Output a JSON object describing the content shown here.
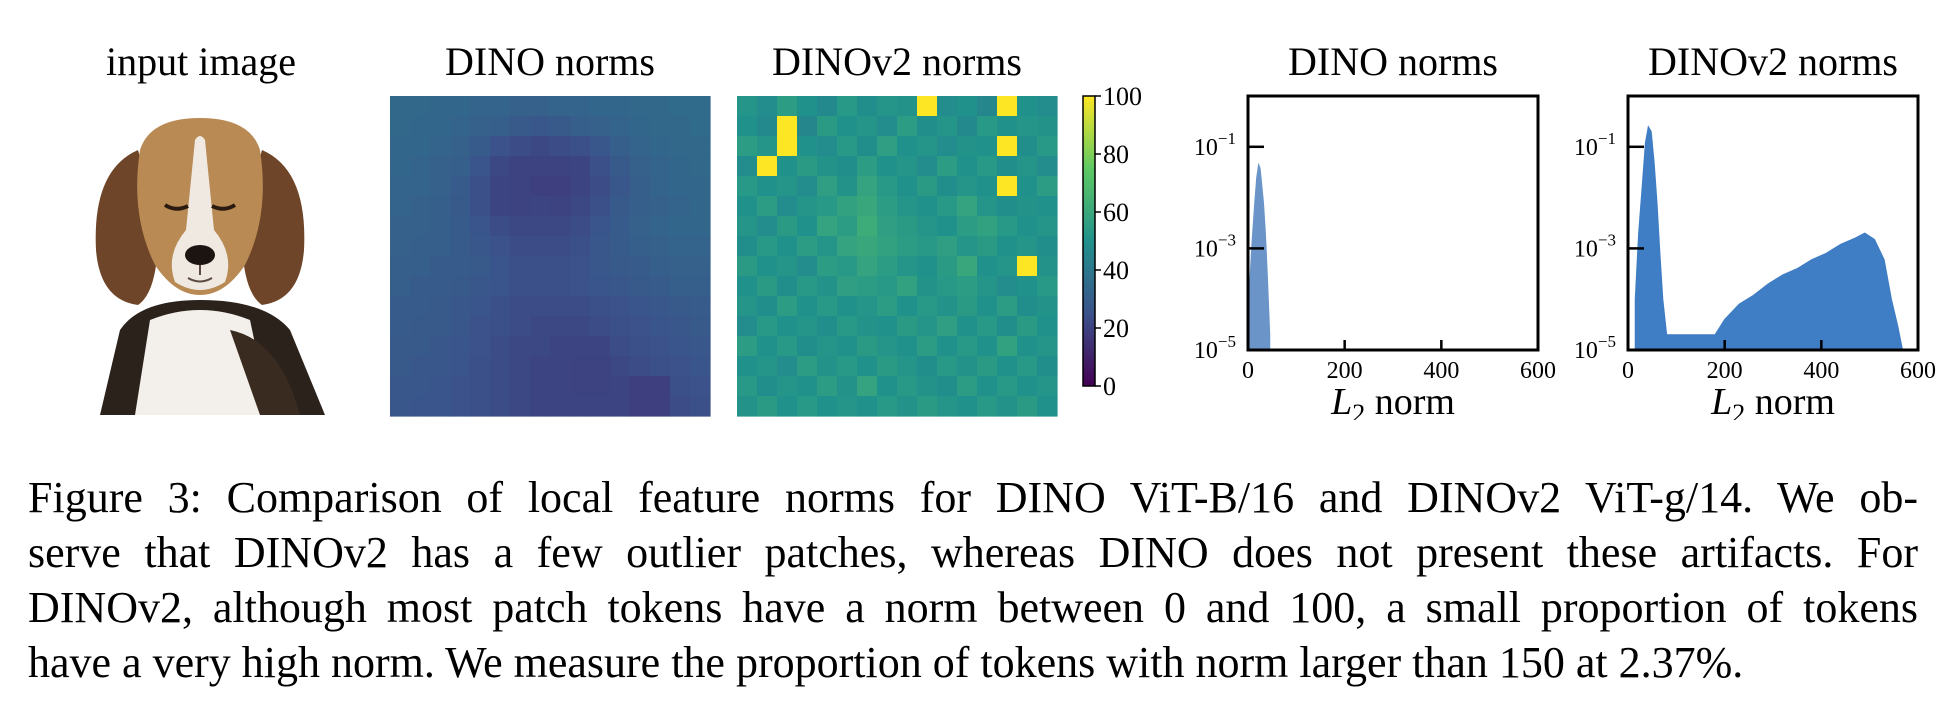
{
  "panels": {
    "input_title": "input image",
    "dino_map_title": "DINO norms",
    "dinov2_map_title": "DINOv2 norms",
    "dino_hist_title": "DINO norms",
    "dinov2_hist_title": "DINOv2 norms"
  },
  "colorbar": {
    "colormap": "viridis",
    "ticks": [
      "100",
      "80",
      "60",
      "40",
      "20",
      "0"
    ],
    "range": [
      0,
      100
    ]
  },
  "caption": {
    "lines": [
      "Figure 3: Comparison of local feature norms for DINO ViT-B/16 and DINOv2 ViT-g/14.  We ob-",
      "serve that DINOv2 has a few outlier patches, whereas DINO does not present these artifacts.  For",
      "DINOv2, although most patch tokens have a norm between 0 and 100, a small proportion of tokens",
      "have a very high norm. We measure the proportion of tokens with norm larger than 150 at 2.37%."
    ]
  },
  "chart_data": [
    {
      "type": "heatmap",
      "title": "DINO norms",
      "colormap": "viridis",
      "vmin": 0,
      "vmax": 100,
      "grid": [
        [
          34,
          34,
          33,
          33,
          32,
          32,
          31,
          31,
          32,
          32,
          33,
          33,
          34,
          34,
          35,
          35
        ],
        [
          34,
          33,
          33,
          32,
          31,
          30,
          28,
          27,
          28,
          30,
          31,
          32,
          33,
          34,
          34,
          35
        ],
        [
          33,
          33,
          32,
          31,
          29,
          25,
          23,
          22,
          23,
          24,
          27,
          30,
          32,
          33,
          34,
          34
        ],
        [
          33,
          32,
          31,
          30,
          26,
          22,
          20,
          20,
          20,
          21,
          24,
          28,
          31,
          32,
          33,
          34
        ],
        [
          32,
          32,
          31,
          29,
          24,
          21,
          20,
          19,
          19,
          21,
          23,
          27,
          30,
          32,
          33,
          33
        ],
        [
          32,
          31,
          30,
          28,
          24,
          21,
          20,
          21,
          20,
          22,
          24,
          28,
          30,
          31,
          32,
          33
        ],
        [
          31,
          31,
          30,
          29,
          26,
          23,
          22,
          22,
          22,
          23,
          26,
          29,
          31,
          32,
          33,
          33
        ],
        [
          31,
          30,
          30,
          29,
          27,
          25,
          23,
          23,
          23,
          24,
          27,
          29,
          30,
          31,
          32,
          32
        ],
        [
          30,
          30,
          29,
          29,
          28,
          26,
          24,
          24,
          24,
          25,
          27,
          28,
          29,
          30,
          31,
          31
        ],
        [
          30,
          29,
          29,
          28,
          27,
          26,
          24,
          24,
          24,
          25,
          26,
          27,
          28,
          29,
          30,
          30
        ],
        [
          29,
          29,
          28,
          27,
          26,
          24,
          23,
          23,
          23,
          23,
          24,
          25,
          26,
          27,
          28,
          29
        ],
        [
          29,
          28,
          28,
          27,
          25,
          24,
          23,
          22,
          22,
          22,
          23,
          24,
          25,
          26,
          27,
          28
        ],
        [
          28,
          28,
          27,
          26,
          25,
          23,
          22,
          22,
          21,
          21,
          21,
          23,
          24,
          25,
          26,
          27
        ],
        [
          28,
          27,
          27,
          26,
          24,
          23,
          22,
          21,
          21,
          20,
          20,
          22,
          23,
          24,
          25,
          26
        ],
        [
          27,
          27,
          26,
          25,
          24,
          23,
          22,
          21,
          21,
          20,
          20,
          21,
          19,
          19,
          24,
          25
        ],
        [
          27,
          26,
          26,
          25,
          24,
          23,
          22,
          21,
          21,
          21,
          21,
          21,
          19,
          19,
          23,
          24
        ]
      ]
    },
    {
      "type": "heatmap",
      "title": "DINOv2 norms",
      "colormap": "viridis",
      "vmin": 0,
      "vmax": 100,
      "grid": [
        [
          52,
          48,
          55,
          50,
          47,
          53,
          49,
          52,
          51,
          100,
          48,
          50,
          46,
          100,
          50,
          48
        ],
        [
          50,
          47,
          100,
          46,
          54,
          50,
          52,
          48,
          55,
          49,
          52,
          47,
          53,
          50,
          52,
          51
        ],
        [
          55,
          52,
          100,
          50,
          48,
          53,
          49,
          56,
          50,
          52,
          48,
          51,
          50,
          100,
          49,
          53
        ],
        [
          48,
          100,
          50,
          54,
          51,
          49,
          55,
          50,
          52,
          48,
          55,
          50,
          53,
          49,
          52,
          48
        ],
        [
          53,
          50,
          52,
          48,
          56,
          51,
          58,
          53,
          50,
          54,
          49,
          52,
          50,
          100,
          50,
          55
        ],
        [
          50,
          55,
          48,
          52,
          53,
          57,
          60,
          55,
          52,
          50,
          53,
          58,
          52,
          49,
          51,
          50
        ],
        [
          52,
          48,
          54,
          50,
          58,
          55,
          62,
          56,
          54,
          52,
          50,
          55,
          57,
          53,
          50,
          52
        ],
        [
          49,
          53,
          50,
          55,
          52,
          58,
          60,
          57,
          55,
          53,
          56,
          52,
          54,
          50,
          52,
          49
        ],
        [
          54,
          50,
          52,
          48,
          55,
          53,
          58,
          55,
          52,
          50,
          54,
          60,
          50,
          52,
          100,
          51
        ],
        [
          50,
          54,
          49,
          53,
          51,
          56,
          55,
          53,
          57,
          51,
          53,
          55,
          52,
          48,
          50,
          53
        ],
        [
          52,
          49,
          55,
          50,
          53,
          50,
          52,
          55,
          50,
          53,
          51,
          54,
          50,
          55,
          49,
          51
        ],
        [
          48,
          53,
          50,
          52,
          49,
          53,
          51,
          50,
          54,
          52,
          56,
          50,
          53,
          49,
          54,
          50
        ],
        [
          55,
          50,
          53,
          49,
          52,
          50,
          54,
          52,
          50,
          55,
          50,
          53,
          50,
          57,
          50,
          52
        ],
        [
          50,
          52,
          48,
          55,
          51,
          53,
          50,
          54,
          52,
          49,
          53,
          51,
          54,
          50,
          53,
          49
        ],
        [
          53,
          49,
          52,
          50,
          55,
          51,
          58,
          50,
          53,
          51,
          49,
          55,
          50,
          53,
          50,
          52
        ],
        [
          51,
          54,
          50,
          53,
          50,
          52,
          50,
          53,
          51,
          54,
          52,
          50,
          53,
          51,
          54,
          50
        ]
      ]
    },
    {
      "type": "area",
      "title": "DINO norms",
      "xlabel": "L2 norm",
      "xlim": [
        0,
        600
      ],
      "yscale": "log",
      "ylim": [
        1e-05,
        1
      ],
      "x_ticks": [
        0,
        200,
        400,
        600
      ],
      "y_ticks": [
        "10^-1",
        "10^-3",
        "10^-5"
      ],
      "color": "#6b95c9",
      "x": [
        2,
        8,
        14,
        18,
        22,
        25,
        28,
        32,
        36,
        40,
        45
      ],
      "values": [
        0.0001,
        0.0012,
        0.008,
        0.025,
        0.045,
        0.038,
        0.02,
        0.008,
        0.002,
        0.0003,
        2e-05
      ]
    },
    {
      "type": "area",
      "title": "DINOv2 norms",
      "xlabel": "L2 norm",
      "xlim": [
        0,
        600
      ],
      "yscale": "log",
      "ylim": [
        1e-05,
        1
      ],
      "x_ticks": [
        0,
        200,
        400,
        600
      ],
      "y_ticks": [
        "10^-1",
        "10^-3",
        "10^-5"
      ],
      "color": "#3f7dc4",
      "x": [
        15,
        22,
        30,
        36,
        42,
        48,
        54,
        60,
        66,
        72,
        80,
        180,
        200,
        230,
        260,
        290,
        320,
        350,
        380,
        410,
        440,
        470,
        490,
        510,
        530,
        545,
        558,
        568
      ],
      "values": [
        0.0001,
        0.002,
        0.02,
        0.12,
        0.25,
        0.2,
        0.05,
        0.008,
        0.0008,
        0.0001,
        2e-05,
        2e-05,
        4e-05,
        8e-05,
        0.00012,
        0.0002,
        0.0003,
        0.0004,
        0.0006,
        0.0008,
        0.0012,
        0.0016,
        0.002,
        0.0015,
        0.0006,
        0.0001,
        3e-05,
        1e-05
      ]
    }
  ]
}
